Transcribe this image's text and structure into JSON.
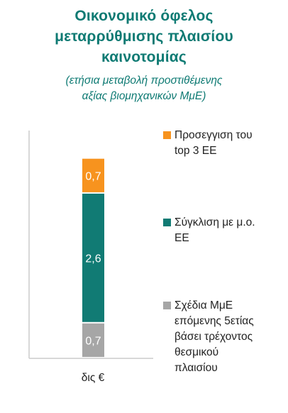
{
  "title_lines": [
    "Οικονομικό όφελος",
    "μεταρρύθμισης πλαισίου",
    "καινοτομίας"
  ],
  "subtitle_lines": [
    "(ετήσια μεταβολή προστιθέμενης",
    "αξίας βιομηχανικών ΜμΕ)"
  ],
  "chart_data": {
    "type": "bar",
    "stacked": true,
    "orientation": "vertical",
    "categories": [
      "δις €"
    ],
    "series": [
      {
        "name": "Σχέδια ΜμΕ επόμενης 5ετίας βάσει τρέχοντος θεσμικού πλαισίου",
        "values": [
          0.7
        ],
        "color": "#a6a6a6",
        "label": "0,7"
      },
      {
        "name": "Σύγκλιση με μ.ο. ΕΕ",
        "values": [
          2.6
        ],
        "color": "#117b74",
        "label": "2,6"
      },
      {
        "name": "Προσέγγιση του top 3 ΕΕ",
        "values": [
          0.7
        ],
        "color": "#f7931e",
        "label": "0,7"
      }
    ],
    "ylim": [
      0,
      4.55
    ],
    "grid": false,
    "legend_position": "right",
    "xlabel": "",
    "ylabel": ""
  },
  "legend": [
    {
      "lines": [
        "Προσεγγιση του",
        "top 3 ΕΕ"
      ],
      "color": "#f7931e"
    },
    {
      "lines": [
        "Σύγκλιση με μ.ο.",
        "ΕΕ"
      ],
      "color": "#117b74"
    },
    {
      "lines": [
        "Σχέδια ΜμΕ",
        "επόμενης 5ετίας",
        "βάσει τρέχοντος",
        "θεσμικού",
        "πλαισίου"
      ],
      "color": "#a6a6a6"
    }
  ]
}
